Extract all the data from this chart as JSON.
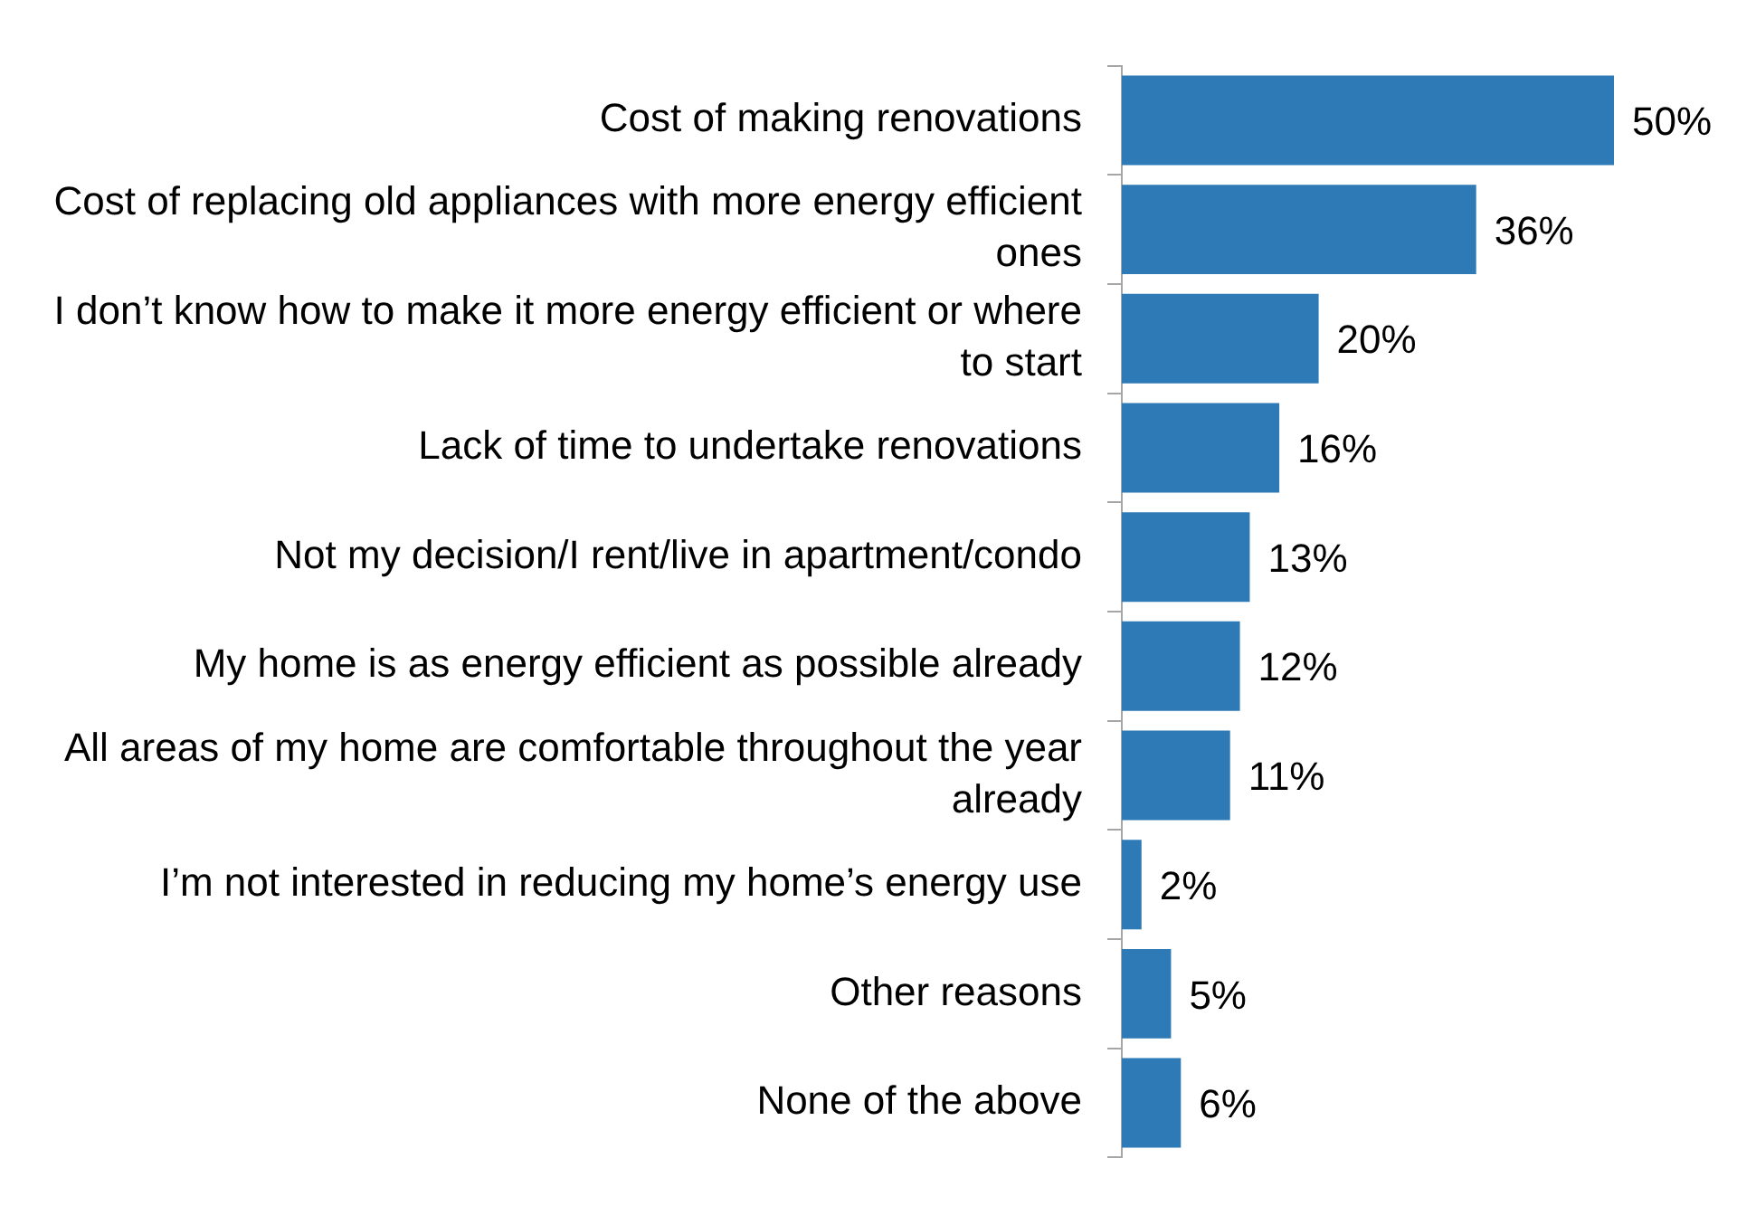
{
  "chart_data": {
    "type": "bar",
    "orientation": "horizontal",
    "categories": [
      "Cost of making renovations",
      "Cost of replacing old appliances with more energy efficient ones",
      "I don’t know how to make it more energy efficient or where to start",
      "Lack of time to undertake renovations",
      "Not my decision/I rent/live in apartment/condo",
      "My home is as energy efficient as possible already",
      "All areas of my home are comfortable throughout the year already",
      "I’m not interested in reducing my home’s energy use",
      "Other reasons",
      "None of the above"
    ],
    "values": [
      50,
      36,
      20,
      16,
      13,
      12,
      11,
      2,
      5,
      6
    ],
    "value_labels": [
      "50%",
      "36%",
      "20%",
      "16%",
      "13%",
      "12%",
      "11%",
      "2%",
      "5%",
      "6%"
    ],
    "color": "#2e7ab6"
  }
}
